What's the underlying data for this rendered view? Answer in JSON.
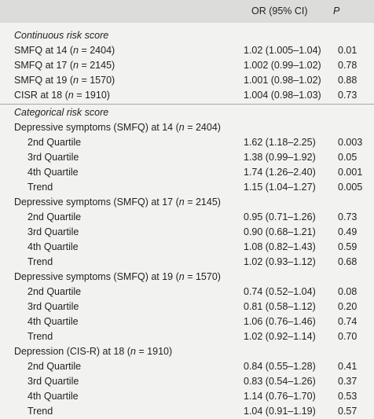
{
  "header": {
    "or_label": "OR (95% CI)",
    "p_label": "P"
  },
  "sections": [
    {
      "title": "Continuous risk score",
      "rows": [
        {
          "label": "SMFQ at 14 (",
          "n": "n",
          "label2": " = 2404)",
          "or": "1.02 (1.005–1.04)",
          "p": "0.01"
        },
        {
          "label": "SMFQ at 17 (",
          "n": "n",
          "label2": " = 2145)",
          "or": "1.002 (0.99–1.02)",
          "p": "0.78"
        },
        {
          "label": "SMFQ at 19 (",
          "n": "n",
          "label2": " = 1570)",
          "or": "1.001 (0.98–1.02)",
          "p": "0.88"
        },
        {
          "label": "CISR at 18 (",
          "n": "n",
          "label2": " = 1910)",
          "or": "1.004 (0.98–1.03)",
          "p": "0.73"
        }
      ]
    },
    {
      "title": "Categorical risk score",
      "groups": [
        {
          "label": "Depressive symptoms (SMFQ) at 14 (",
          "n": "n",
          "label2": " = 2404)",
          "rows": [
            {
              "label": "2nd Quartile",
              "or": "1.62 (1.18–2.25)",
              "p": "0.003"
            },
            {
              "label": "3rd Quartile",
              "or": "1.38 (0.99–1.92)",
              "p": "0.05"
            },
            {
              "label": "4th Quartile",
              "or": "1.74 (1.26–2.40)",
              "p": "0.001"
            },
            {
              "label": "Trend",
              "or": "1.15 (1.04–1.27)",
              "p": "0.005"
            }
          ]
        },
        {
          "label": "Depressive symptoms (SMFQ) at 17 (",
          "n": "n",
          "label2": " = 2145)",
          "rows": [
            {
              "label": "2nd Quartile",
              "or": "0.95 (0.71–1.26)",
              "p": "0.73"
            },
            {
              "label": "3rd Quartile",
              "or": "0.90 (0.68–1.21)",
              "p": "0.49"
            },
            {
              "label": "4th Quartile",
              "or": "1.08 (0.82–1.43)",
              "p": "0.59"
            },
            {
              "label": "Trend",
              "or": "1.02 (0.93–1.12)",
              "p": "0.68"
            }
          ]
        },
        {
          "label": "Depressive symptoms (SMFQ) at 19 (",
          "n": "n",
          "label2": " = 1570)",
          "rows": [
            {
              "label": "2nd Quartile",
              "or": "0.74 (0.52–1.04)",
              "p": "0.08"
            },
            {
              "label": "3rd Quartile",
              "or": "0.81 (0.58–1.12)",
              "p": "0.20"
            },
            {
              "label": "4th Quartile",
              "or": "1.06 (0.76–1.46)",
              "p": "0.74"
            },
            {
              "label": "Trend",
              "or": "1.02 (0.92–1.14)",
              "p": "0.70"
            }
          ]
        },
        {
          "label": "Depression (CIS-R) at 18 (",
          "n": "n",
          "label2": " = 1910)",
          "rows": [
            {
              "label": "2nd Quartile",
              "or": "0.84 (0.55–1.28)",
              "p": "0.41"
            },
            {
              "label": "3rd Quartile",
              "or": "0.83 (0.54–1.26)",
              "p": "0.37"
            },
            {
              "label": "4th Quartile",
              "or": "1.14 (0.76–1.70)",
              "p": "0.53"
            },
            {
              "label": "Trend",
              "or": "1.04 (0.91–1.19)",
              "p": "0.57"
            }
          ]
        }
      ]
    }
  ]
}
